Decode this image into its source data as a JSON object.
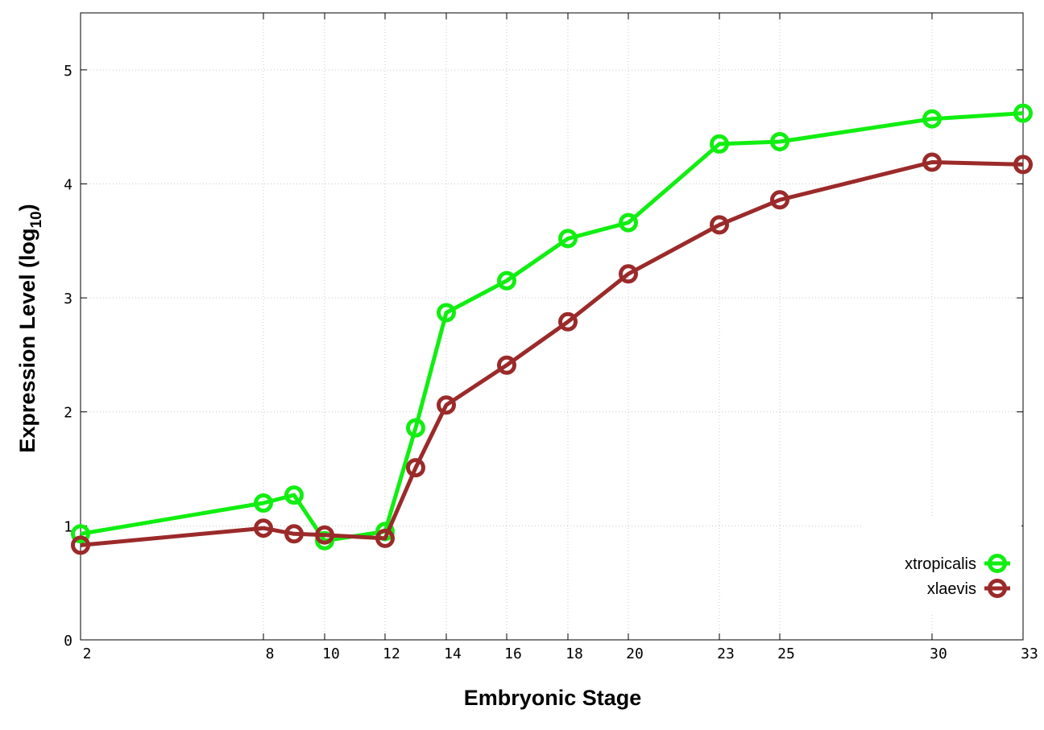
{
  "chart_data": {
    "type": "line",
    "xlabel": "Embryonic Stage",
    "ylabel": "Expression Level (log10)",
    "ylabel_main": "Expression Level (log",
    "ylabel_sub": "10",
    "ylabel_close": ")",
    "x_ticks": [
      2,
      8,
      10,
      12,
      14,
      16,
      18,
      20,
      23,
      25,
      30,
      33
    ],
    "x_tick_labels": [
      "2",
      "8",
      "10",
      "12",
      "14",
      "16",
      "18",
      "20",
      "23",
      "25",
      "30",
      "33"
    ],
    "y_ticks": [
      0,
      1,
      2,
      3,
      4,
      5
    ],
    "y_tick_labels": [
      "0",
      "1",
      "2",
      "3",
      "4",
      "5"
    ],
    "ylim": [
      0,
      5.5
    ],
    "grid": true,
    "legend_position": "bottom-right",
    "series": [
      {
        "name": "xtropicalis",
        "color": "#11ee11",
        "x": [
          "2",
          "8",
          "9",
          "10",
          "12",
          "13",
          "14",
          "16",
          "18",
          "20",
          "23",
          "25",
          "30",
          "33"
        ],
        "values": [
          0.93,
          1.2,
          1.27,
          0.87,
          0.95,
          1.86,
          2.87,
          3.15,
          3.52,
          3.66,
          4.35,
          4.37,
          4.57,
          4.62
        ]
      },
      {
        "name": "xlaevis",
        "color": "#9b2a2a",
        "x": [
          "2",
          "8",
          "9",
          "10",
          "12",
          "13",
          "14",
          "16",
          "18",
          "20",
          "23",
          "25",
          "30",
          "33"
        ],
        "values": [
          0.83,
          0.98,
          0.93,
          0.92,
          0.89,
          1.51,
          2.06,
          2.41,
          2.79,
          3.21,
          3.64,
          3.86,
          4.19,
          4.17
        ]
      }
    ]
  }
}
